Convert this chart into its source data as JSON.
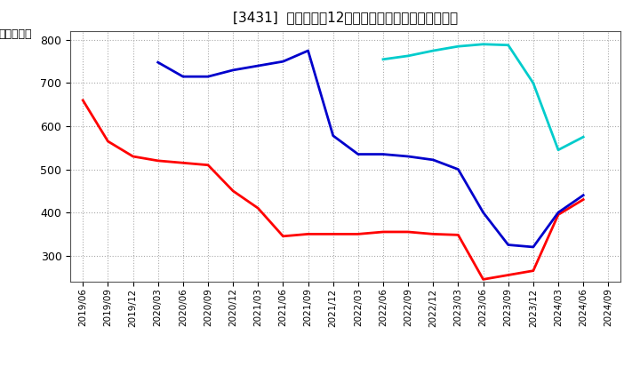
{
  "title": "[3431]  当期純利益12か月移動合計の標準偏差の推移",
  "ylabel": "（百万円）",
  "ylim": [
    240,
    820
  ],
  "yticks": [
    300,
    400,
    500,
    600,
    700,
    800
  ],
  "background_color": "#ffffff",
  "grid_color": "#aaaaaa",
  "series": {
    "3year": {
      "color": "#ff0000",
      "dates": [
        "2019/06",
        "2019/09",
        "2019/12",
        "2020/03",
        "2020/06",
        "2020/09",
        "2020/12",
        "2021/03",
        "2021/06",
        "2021/09",
        "2021/12",
        "2022/03",
        "2022/06",
        "2022/09",
        "2022/12",
        "2023/03",
        "2023/06",
        "2023/09",
        "2023/12",
        "2024/03",
        "2024/06"
      ],
      "values": [
        660,
        565,
        530,
        520,
        515,
        510,
        450,
        410,
        345,
        350,
        350,
        350,
        355,
        355,
        350,
        348,
        245,
        255,
        265,
        395,
        430
      ]
    },
    "5year": {
      "color": "#0000cc",
      "dates": [
        "2019/06",
        "2019/09",
        "2019/12",
        "2020/03",
        "2020/06",
        "2020/09",
        "2020/12",
        "2021/03",
        "2021/06",
        "2021/09",
        "2021/12",
        "2022/03",
        "2022/06",
        "2022/09",
        "2022/12",
        "2023/03",
        "2023/06",
        "2023/09",
        "2023/12",
        "2024/03",
        "2024/06"
      ],
      "values": [
        null,
        null,
        null,
        748,
        715,
        715,
        730,
        740,
        750,
        775,
        578,
        535,
        535,
        530,
        522,
        500,
        400,
        325,
        320,
        400,
        440
      ]
    },
    "7year": {
      "color": "#00cccc",
      "dates": [
        "2019/06",
        "2019/09",
        "2019/12",
        "2020/03",
        "2020/06",
        "2020/09",
        "2020/12",
        "2021/03",
        "2021/06",
        "2021/09",
        "2021/12",
        "2022/03",
        "2022/06",
        "2022/09",
        "2022/12",
        "2023/03",
        "2023/06",
        "2023/09",
        "2023/12",
        "2024/03",
        "2024/06"
      ],
      "values": [
        null,
        null,
        null,
        null,
        null,
        null,
        null,
        null,
        null,
        null,
        null,
        null,
        755,
        763,
        775,
        785,
        790,
        788,
        700,
        545,
        575
      ]
    },
    "10year": {
      "color": "#008000",
      "dates": [],
      "values": []
    }
  },
  "xtick_labels": [
    "2019/06",
    "2019/09",
    "2019/12",
    "2020/03",
    "2020/06",
    "2020/09",
    "2020/12",
    "2021/03",
    "2021/06",
    "2021/09",
    "2021/12",
    "2022/03",
    "2022/06",
    "2022/09",
    "2022/12",
    "2023/03",
    "2023/06",
    "2023/09",
    "2023/12",
    "2024/03",
    "2024/06",
    "2024/09"
  ]
}
